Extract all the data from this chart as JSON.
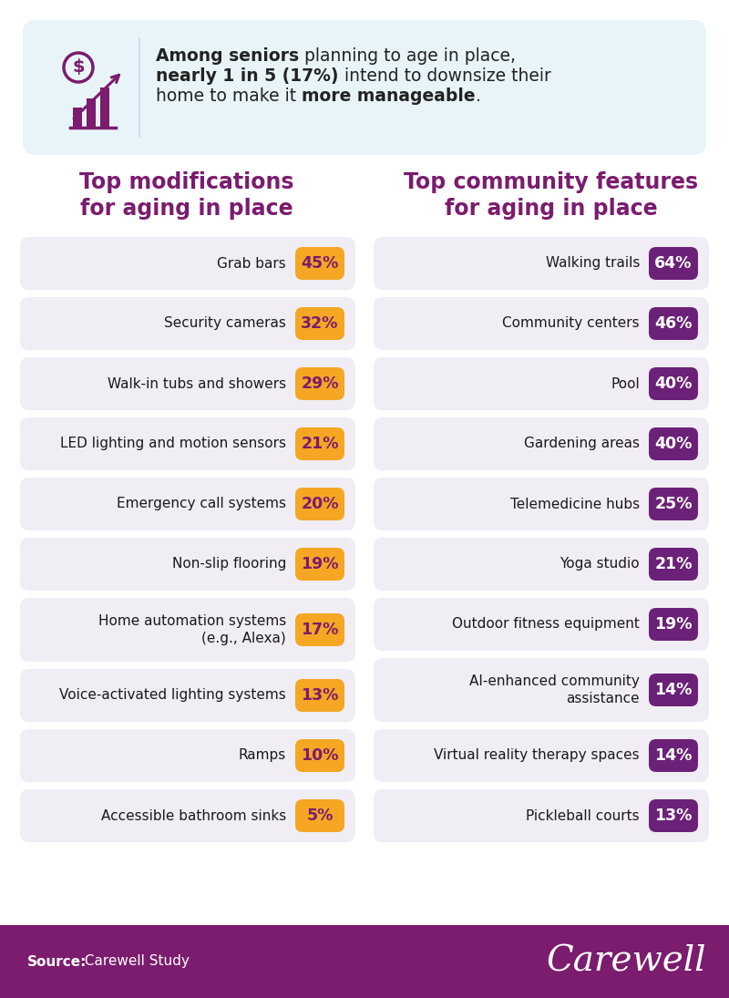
{
  "bg_color": "#ffffff",
  "header_box_color": "#e8f4f8",
  "left_title": "Top modifications\nfor aging in place",
  "right_title": "Top community features\nfor aging in place",
  "title_color": "#7B1C6E",
  "left_items": [
    {
      "label": "Grab bars",
      "value": "45%"
    },
    {
      "label": "Security cameras",
      "value": "32%"
    },
    {
      "label": "Walk-in tubs and showers",
      "value": "29%"
    },
    {
      "label": "LED lighting and motion sensors",
      "value": "21%"
    },
    {
      "label": "Emergency call systems",
      "value": "20%"
    },
    {
      "label": "Non-slip flooring",
      "value": "19%"
    },
    {
      "label": "Home automation systems\n(e.g., Alexa)",
      "value": "17%"
    },
    {
      "label": "Voice-activated lighting systems",
      "value": "13%"
    },
    {
      "label": "Ramps",
      "value": "10%"
    },
    {
      "label": "Accessible bathroom sinks",
      "value": "5%"
    }
  ],
  "right_items": [
    {
      "label": "Walking trails",
      "value": "64%"
    },
    {
      "label": "Community centers",
      "value": "46%"
    },
    {
      "label": "Pool",
      "value": "40%"
    },
    {
      "label": "Gardening areas",
      "value": "40%"
    },
    {
      "label": "Telemedicine hubs",
      "value": "25%"
    },
    {
      "label": "Yoga studio",
      "value": "21%"
    },
    {
      "label": "Outdoor fitness equipment",
      "value": "19%"
    },
    {
      "label": "AI-enhanced community\nassistance",
      "value": "14%"
    },
    {
      "label": "Virtual reality therapy spaces",
      "value": "14%"
    },
    {
      "label": "Pickleball courts",
      "value": "13%"
    }
  ],
  "left_badge_color": "#F5A623",
  "left_badge_text_color": "#7B1C6E",
  "right_badge_color": "#6B2177",
  "right_badge_text_color": "#ffffff",
  "row_bg_color": "#F0EDF5",
  "footer_bg_color": "#7B1C6E",
  "footer_text_color": "#ffffff",
  "footer_source_bold": "Source:",
  "footer_source_normal": " Carewell Study",
  "footer_brand": "Carewell",
  "icon_color": "#7B1C6E",
  "header_line1_bold": "Among seniors",
  "header_line1_normal": " planning to age in place,",
  "header_line2_bold": "nearly 1 in 5 (17%)",
  "header_line2_normal": " intend to downsize their",
  "header_line3_pre": "home to make it ",
  "header_line3_bold": "more manageable",
  "header_line3_post": "."
}
